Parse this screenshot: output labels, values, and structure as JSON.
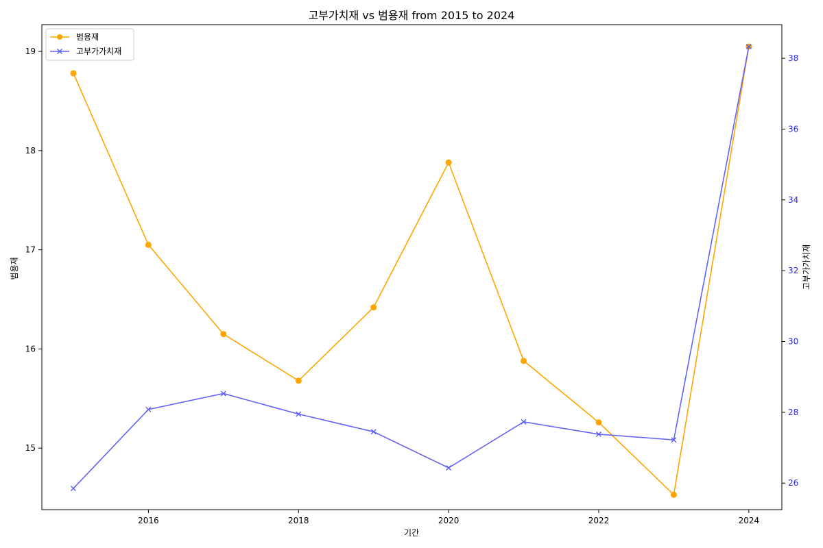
{
  "chart_data": {
    "type": "line",
    "title": "고부가치재 vs 범용재 from 2015 to 2024",
    "xlabel": "기간",
    "ylabel_left": "범용재",
    "ylabel_right": "고부가가치재",
    "x": [
      2015,
      2016,
      2017,
      2018,
      2019,
      2020,
      2021,
      2022,
      2023,
      2024
    ],
    "x_ticks": [
      2016,
      2018,
      2020,
      2022,
      2024
    ],
    "xlim": [
      2014.58,
      2024.44
    ],
    "ylim_left": [
      14.38,
      19.27
    ],
    "ylim_right": [
      25.25,
      38.95
    ],
    "y_ticks_left": [
      15,
      16,
      17,
      18,
      19
    ],
    "y_ticks_right": [
      26,
      28,
      30,
      32,
      34,
      36,
      38
    ],
    "grid": false,
    "legend_position": "top-left",
    "series": [
      {
        "name": "범용재",
        "axis": "left",
        "color": "#ffa500",
        "marker": "circle",
        "values": [
          18.78,
          17.05,
          16.15,
          15.68,
          16.42,
          17.88,
          15.88,
          15.26,
          14.53,
          19.05
        ]
      },
      {
        "name": "고부가가치재",
        "axis": "right",
        "color": "#5a5af5",
        "marker": "x",
        "values": [
          25.85,
          28.08,
          28.53,
          27.95,
          27.45,
          26.43,
          27.73,
          27.38,
          27.22,
          38.33
        ]
      }
    ]
  },
  "colors": {
    "right_tick_color": "#2a2ad8"
  }
}
